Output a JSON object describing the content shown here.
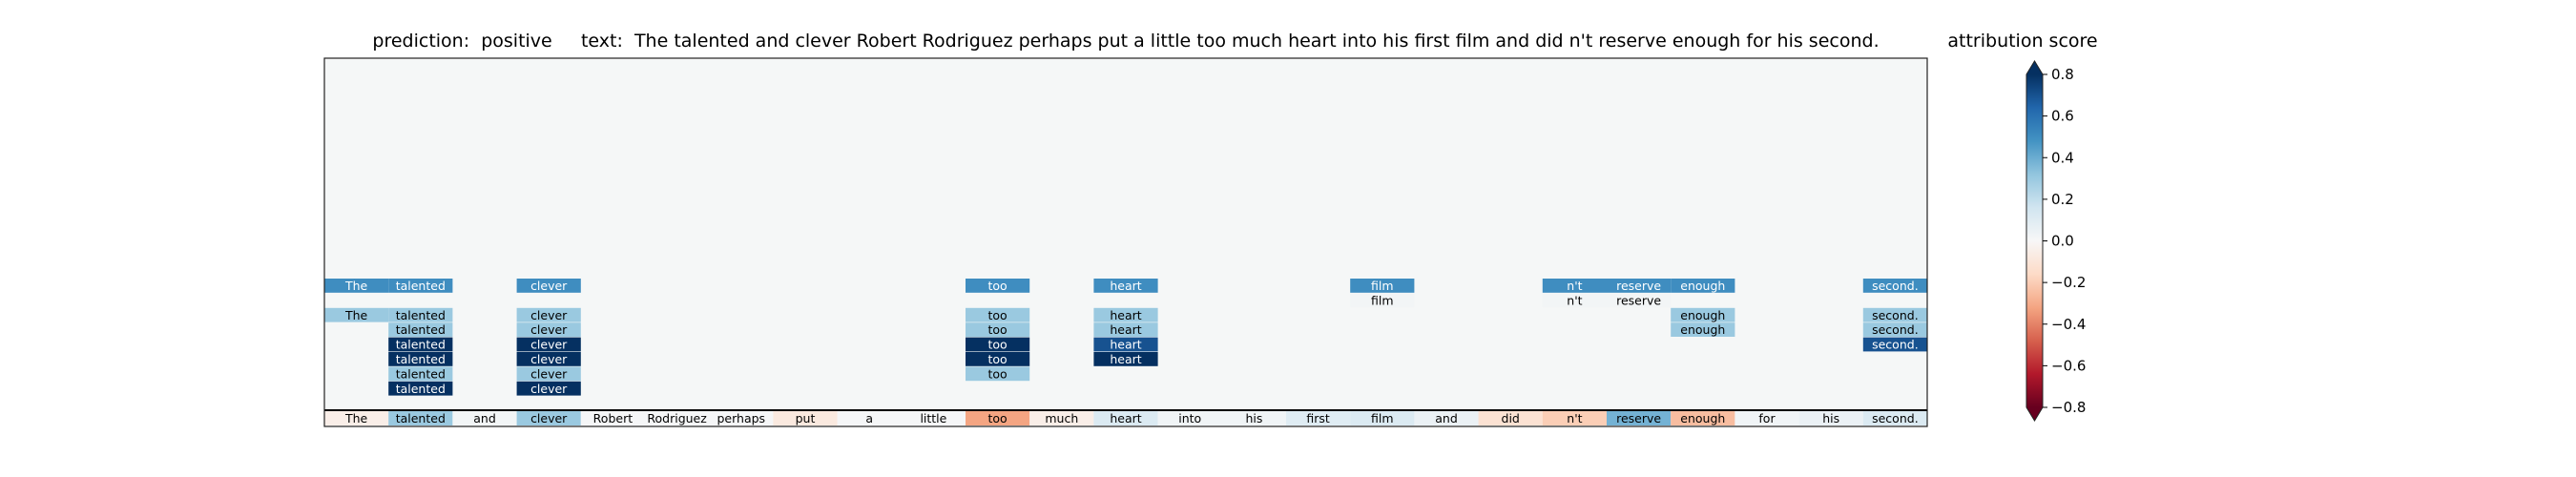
{
  "chart_data": {
    "type": "heatmap",
    "title": {
      "prediction_label": "prediction:",
      "prediction_value": "positive",
      "text_label": "text:",
      "text_value": "The talented and clever Robert Rodriguez perhaps put a little too much heart into his first film and did n't reserve enough for his second."
    },
    "colorbar": {
      "title": "attribution score",
      "ticks": [
        0.8,
        0.6,
        0.4,
        0.2,
        0.0,
        -0.2,
        -0.4,
        -0.6,
        -0.8
      ],
      "tick_labels": [
        "0.8",
        "0.6",
        "0.4",
        "0.2",
        "0.0",
        "−0.2",
        "−0.4",
        "−0.6",
        "−0.8"
      ],
      "range": [
        -0.8,
        0.8
      ],
      "colormap": "RdBu",
      "extend": "both"
    },
    "tokens": [
      "The",
      "talented",
      "and",
      "clever",
      "Robert",
      "Rodriguez",
      "perhaps",
      "put",
      "a",
      "little",
      "too",
      "much",
      "heart",
      "into",
      "his",
      "first",
      "film",
      "and",
      "did",
      "n't",
      "reserve",
      "enough",
      "for",
      "his",
      "second."
    ],
    "token_scores": [
      -0.05,
      0.3,
      0.02,
      0.3,
      0.01,
      0.01,
      0.01,
      -0.08,
      0.01,
      0.01,
      -0.32,
      -0.05,
      0.12,
      0.03,
      0.03,
      0.1,
      0.12,
      0.05,
      -0.12,
      -0.2,
      0.38,
      -0.25,
      0.03,
      0.05,
      0.12
    ],
    "rows": [
      {
        "row": 0,
        "cells": [
          {
            "token": "The",
            "value": 0.5
          },
          {
            "token": "talented",
            "value": 0.5
          },
          {
            "token": "clever",
            "value": 0.5
          },
          {
            "token": "too",
            "value": 0.5
          },
          {
            "token": "heart",
            "value": 0.5
          },
          {
            "token": "film",
            "value": 0.5
          },
          {
            "token": "n't",
            "value": 0.5
          },
          {
            "token": "reserve",
            "value": 0.5
          },
          {
            "token": "enough",
            "value": 0.5
          },
          {
            "token": "second.",
            "value": 0.5
          }
        ]
      },
      {
        "row": 1,
        "cells": [
          {
            "token": "film",
            "value": 0.02
          },
          {
            "token": "n't",
            "value": 0.02
          },
          {
            "token": "reserve",
            "value": 0.02
          }
        ]
      },
      {
        "row": 2,
        "cells": [
          {
            "token": "The",
            "value": 0.3
          },
          {
            "token": "talented",
            "value": 0.3
          },
          {
            "token": "clever",
            "value": 0.3
          },
          {
            "token": "too",
            "value": 0.3
          },
          {
            "token": "heart",
            "value": 0.3
          },
          {
            "token": "enough",
            "value": 0.3
          },
          {
            "token": "second.",
            "value": 0.3
          }
        ]
      },
      {
        "row": 3,
        "cells": [
          {
            "token": "talented",
            "value": 0.3
          },
          {
            "token": "clever",
            "value": 0.3
          },
          {
            "token": "too",
            "value": 0.3
          },
          {
            "token": "heart",
            "value": 0.3
          },
          {
            "token": "enough",
            "value": 0.3
          },
          {
            "token": "second.",
            "value": 0.3
          }
        ]
      },
      {
        "row": 4,
        "cells": [
          {
            "token": "talented",
            "value": 0.8
          },
          {
            "token": "clever",
            "value": 0.8
          },
          {
            "token": "too",
            "value": 0.8
          },
          {
            "token": "heart",
            "value": 0.7
          },
          {
            "token": "second.",
            "value": 0.7
          }
        ]
      },
      {
        "row": 5,
        "cells": [
          {
            "token": "talented",
            "value": 0.8
          },
          {
            "token": "clever",
            "value": 0.8
          },
          {
            "token": "too",
            "value": 0.8
          },
          {
            "token": "heart",
            "value": 0.8
          }
        ]
      },
      {
        "row": 6,
        "cells": [
          {
            "token": "talented",
            "value": 0.3
          },
          {
            "token": "clever",
            "value": 0.3
          },
          {
            "token": "too",
            "value": 0.3
          }
        ]
      },
      {
        "row": 7,
        "cells": [
          {
            "token": "talented",
            "value": 0.8
          },
          {
            "token": "clever",
            "value": 0.8
          }
        ]
      },
      {
        "row": 8,
        "cells": []
      },
      {
        "row": 9,
        "cells": [
          {
            "token": "n't",
            "value": -0.06
          },
          {
            "token": "reserve",
            "value": -0.06
          }
        ]
      }
    ]
  }
}
